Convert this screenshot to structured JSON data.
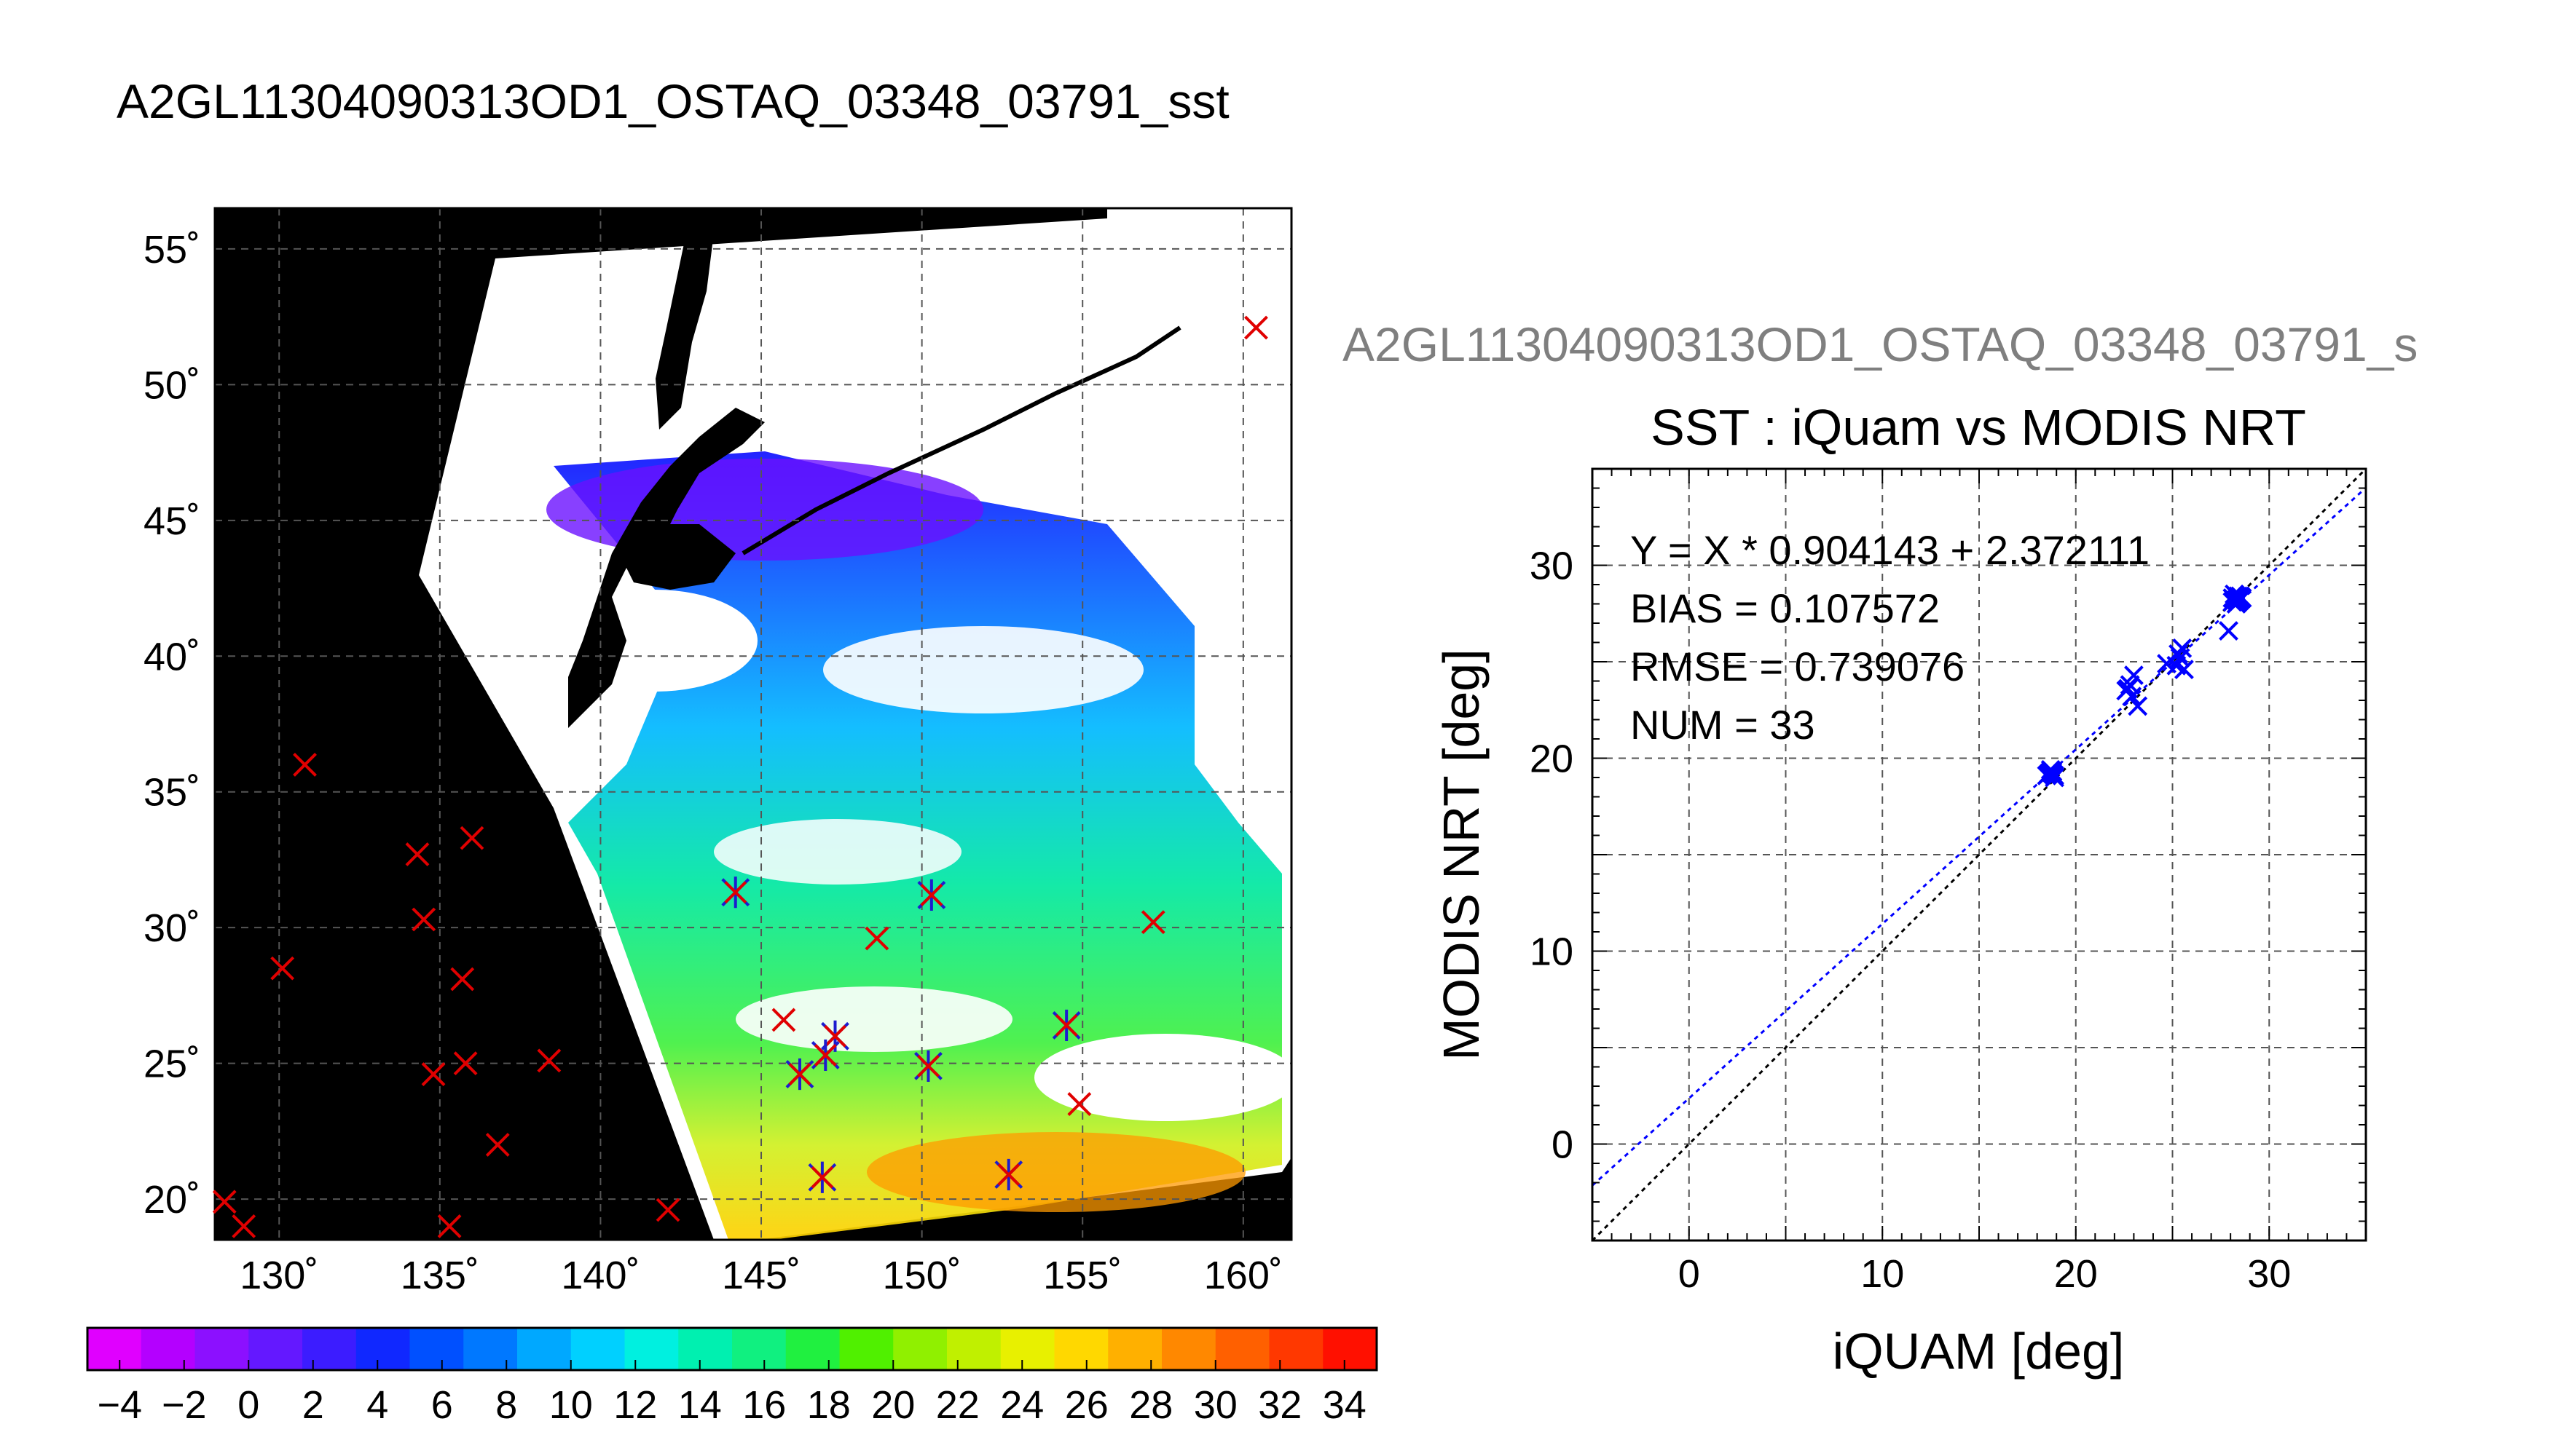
{
  "header": {
    "main_title": "A2GL11304090313OD1_OSTAQ_03348_03791_sst",
    "right_title": "A2GL11304090313OD1_OSTAQ_03348_03791_s"
  },
  "colors": {
    "in_situ_marker": "#e00000",
    "match_marker": "#1c1ccf",
    "land": "#000000",
    "cloud": "#ffffff",
    "regression_line": "#0000ff",
    "identity_line": "#000000"
  },
  "map": {
    "lon_range": [
      128,
      161.5
    ],
    "lat_range": [
      18.5,
      56.5
    ],
    "lon_ticks": [
      130,
      135,
      140,
      145,
      150,
      155,
      160
    ],
    "lon_tick_labels": [
      "130˚",
      "135˚",
      "140˚",
      "145˚",
      "150˚",
      "155˚",
      "160˚"
    ],
    "lat_ticks": [
      20,
      25,
      30,
      35,
      40,
      45,
      50,
      55
    ],
    "lat_tick_labels": [
      "20˚",
      "25˚",
      "30˚",
      "35˚",
      "40˚",
      "45˚",
      "50˚",
      "55˚"
    ],
    "grid": true,
    "insitu_points": [
      {
        "lon": 160.4,
        "lat": 52.1
      },
      {
        "lon": 130.8,
        "lat": 36.0
      },
      {
        "lon": 134.3,
        "lat": 32.7
      },
      {
        "lon": 136.0,
        "lat": 33.3
      },
      {
        "lon": 134.5,
        "lat": 30.3
      },
      {
        "lon": 130.1,
        "lat": 28.5
      },
      {
        "lon": 135.7,
        "lat": 28.1
      },
      {
        "lon": 134.8,
        "lat": 24.6
      },
      {
        "lon": 135.8,
        "lat": 25.0
      },
      {
        "lon": 138.4,
        "lat": 25.1
      },
      {
        "lon": 136.8,
        "lat": 22.0
      },
      {
        "lon": 128.3,
        "lat": 19.9
      },
      {
        "lon": 128.9,
        "lat": 19.0
      },
      {
        "lon": 135.3,
        "lat": 19.0
      },
      {
        "lon": 142.1,
        "lat": 19.6
      },
      {
        "lon": 148.6,
        "lat": 29.6
      },
      {
        "lon": 145.7,
        "lat": 26.6
      },
      {
        "lon": 157.2,
        "lat": 30.2
      },
      {
        "lon": 154.9,
        "lat": 23.5
      }
    ],
    "matchup_points": [
      {
        "lon": 144.2,
        "lat": 31.3
      },
      {
        "lon": 150.3,
        "lat": 31.2
      },
      {
        "lon": 154.5,
        "lat": 26.4
      },
      {
        "lon": 147.3,
        "lat": 26.0
      },
      {
        "lon": 147.0,
        "lat": 25.3
      },
      {
        "lon": 146.2,
        "lat": 24.6
      },
      {
        "lon": 150.2,
        "lat": 24.9
      },
      {
        "lon": 146.9,
        "lat": 20.8
      },
      {
        "lon": 152.7,
        "lat": 20.9
      }
    ]
  },
  "colorbar": {
    "min": -5,
    "max": 35,
    "tick_values": [
      -4,
      -2,
      0,
      2,
      4,
      6,
      8,
      10,
      12,
      14,
      16,
      18,
      20,
      22,
      24,
      26,
      28,
      30,
      32,
      34
    ],
    "tick_labels": [
      "−4",
      "−2",
      "0",
      "2",
      "4",
      "6",
      "8",
      "10",
      "12",
      "14",
      "16",
      "18",
      "20",
      "22",
      "24",
      "26",
      "28",
      "30",
      "32",
      "34"
    ]
  },
  "chart_data": {
    "type": "scatter",
    "title": "SST : iQuam vs MODIS NRT",
    "xlabel": "iQUAM [deg]",
    "ylabel": "MODIS NRT [deg]",
    "xlim": [
      -5,
      35
    ],
    "ylim": [
      -5,
      35
    ],
    "x_ticks": [
      0,
      10,
      20,
      30
    ],
    "y_ticks": [
      0,
      10,
      20,
      30
    ],
    "x_tick_labels": [
      "0",
      "10",
      "20",
      "30"
    ],
    "y_tick_labels": [
      "0",
      "10",
      "20",
      "30"
    ],
    "grid": true,
    "regression": {
      "slope": 0.904143,
      "intercept": 2.372111
    },
    "stats": {
      "equation": "Y = X * 0.904143 + 2.372111",
      "bias": "BIAS = 0.107572",
      "rmse": "RMSE = 0.739076",
      "num": "NUM = 33"
    },
    "points": [
      {
        "x": 18.6,
        "y": 19.2
      },
      {
        "x": 18.8,
        "y": 19.3
      },
      {
        "x": 18.9,
        "y": 19.1
      },
      {
        "x": 18.7,
        "y": 19.4
      },
      {
        "x": 18.8,
        "y": 19.2
      },
      {
        "x": 22.6,
        "y": 23.5
      },
      {
        "x": 22.8,
        "y": 23.8
      },
      {
        "x": 23.0,
        "y": 24.3
      },
      {
        "x": 22.9,
        "y": 23.2
      },
      {
        "x": 23.2,
        "y": 22.7
      },
      {
        "x": 24.7,
        "y": 24.9
      },
      {
        "x": 25.2,
        "y": 24.8
      },
      {
        "x": 25.5,
        "y": 25.7
      },
      {
        "x": 25.4,
        "y": 25.2
      },
      {
        "x": 25.6,
        "y": 24.6
      },
      {
        "x": 27.9,
        "y": 26.6
      },
      {
        "x": 28.2,
        "y": 28.2
      },
      {
        "x": 28.3,
        "y": 28.4
      },
      {
        "x": 28.4,
        "y": 28.1
      },
      {
        "x": 28.1,
        "y": 28.3
      },
      {
        "x": 28.5,
        "y": 28.2
      },
      {
        "x": 28.3,
        "y": 28.0
      },
      {
        "x": 28.2,
        "y": 28.5
      },
      {
        "x": 28.6,
        "y": 28.3
      },
      {
        "x": 28.4,
        "y": 28.4
      },
      {
        "x": 18.9,
        "y": 19.0
      },
      {
        "x": 18.5,
        "y": 19.1
      },
      {
        "x": 22.7,
        "y": 23.6
      },
      {
        "x": 25.3,
        "y": 25.4
      },
      {
        "x": 28.3,
        "y": 28.2
      },
      {
        "x": 28.1,
        "y": 28.1
      },
      {
        "x": 28.5,
        "y": 28.4
      },
      {
        "x": 18.7,
        "y": 19.3
      }
    ]
  }
}
